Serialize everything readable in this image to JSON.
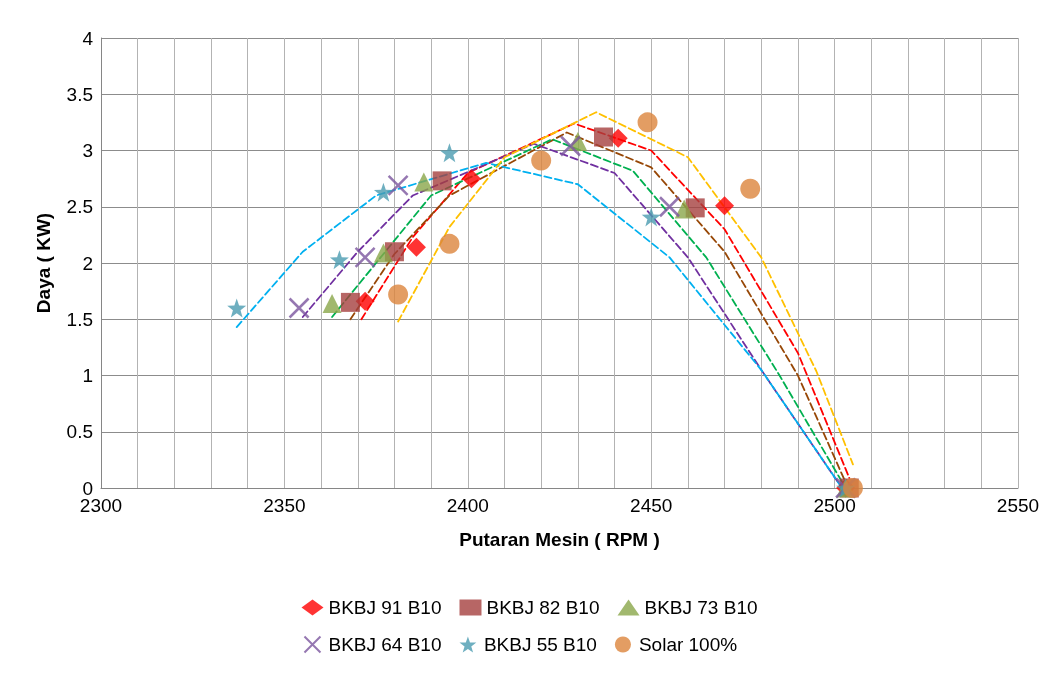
{
  "chart_data": {
    "type": "scatter",
    "xlabel": "Putaran Mesin ( RPM )",
    "ylabel": "Daya ( KW)",
    "xlim": [
      2300,
      2550
    ],
    "xticks": [
      2300,
      {
        "value": 2310,
        "label": null
      },
      {
        "value": 2320,
        "label": null
      },
      {
        "value": 2330,
        "label": null
      },
      {
        "value": 2340,
        "label": null
      },
      2350,
      {
        "value": 2360,
        "label": null
      },
      {
        "value": 2370,
        "label": null
      },
      {
        "value": 2380,
        "label": null
      },
      {
        "value": 2390,
        "label": null
      },
      2400,
      {
        "value": 2410,
        "label": null
      },
      {
        "value": 2420,
        "label": null
      },
      {
        "value": 2430,
        "label": null
      },
      {
        "value": 2440,
        "label": null
      },
      2450,
      {
        "value": 2460,
        "label": null
      },
      {
        "value": 2470,
        "label": null
      },
      {
        "value": 2480,
        "label": null
      },
      {
        "value": 2490,
        "label": null
      },
      2500,
      {
        "value": 2510,
        "label": null
      },
      {
        "value": 2520,
        "label": null
      },
      {
        "value": 2530,
        "label": null
      },
      {
        "value": 2540,
        "label": null
      },
      2550
    ],
    "ylim": [
      0,
      4
    ],
    "yticks": [
      0,
      0.5,
      1,
      1.5,
      2,
      2.5,
      3,
      3.5,
      4
    ],
    "grid": true,
    "legend": "bottom",
    "series": [
      {
        "name": "BKBJ 91 B10",
        "color": "#ff0000",
        "marker": "diamond",
        "x": [
          2372,
          2386,
          2401,
          2441,
          2470,
          2503
        ],
        "values": [
          1.66,
          2.14,
          2.75,
          3.11,
          2.51,
          0
        ]
      },
      {
        "name": "BKBJ 82 B10",
        "color": "#a5403f",
        "marker": "square",
        "x": [
          2368,
          2380,
          2393,
          2437,
          2462,
          2504
        ],
        "values": [
          1.65,
          2.1,
          2.73,
          3.12,
          2.49,
          0
        ]
      },
      {
        "name": "BKBJ 73 B10",
        "color": "#8aa64a",
        "marker": "triangle",
        "x": [
          2363,
          2377,
          2388,
          2430,
          2459,
          2503
        ],
        "values": [
          1.64,
          2.09,
          2.72,
          3.08,
          2.48,
          0
        ]
      },
      {
        "name": "BKBJ 64 B10",
        "color": "#7a559e",
        "marker": "cross",
        "x": [
          2354,
          2372,
          2381,
          2428,
          2455,
          2503
        ],
        "values": [
          1.6,
          2.05,
          2.69,
          3.04,
          2.5,
          0
        ]
      },
      {
        "name": "BKBJ 55 B10",
        "color": "#4a9bb0",
        "marker": "star",
        "x": [
          2337,
          2365,
          2377,
          2395,
          2450,
          2503
        ],
        "values": [
          1.6,
          2.03,
          2.63,
          2.98,
          2.41,
          0
        ]
      },
      {
        "name": "Solar 100%",
        "color": "#dc843c",
        "marker": "circle",
        "x": [
          2381,
          2395,
          2420,
          2449,
          2477,
          2505
        ],
        "values": [
          1.72,
          2.17,
          2.91,
          3.25,
          2.66,
          0
        ]
      },
      {
        "type": "line",
        "color": "#ff0000",
        "marker": "none",
        "line_style": "dashed",
        "x": [
          2371,
          2385,
          2400,
          2429,
          2450,
          2470,
          2490,
          2504
        ],
        "values": [
          1.5,
          2.23,
          2.8,
          3.24,
          3.0,
          2.3,
          1.2,
          0.09
        ]
      },
      {
        "type": "line",
        "color": "#974706",
        "marker": "none",
        "line_style": "dashed",
        "x": [
          2368,
          2380,
          2395,
          2427,
          2450,
          2470,
          2490,
          2503
        ],
        "values": [
          1.5,
          2.08,
          2.6,
          3.16,
          2.85,
          2.1,
          1.0,
          0.05
        ]
      },
      {
        "type": "line",
        "color": "#00b050",
        "marker": "none",
        "line_style": "dashed",
        "x": [
          2363,
          2375,
          2390,
          2423,
          2445,
          2465,
          2485,
          2503
        ],
        "values": [
          1.52,
          2.0,
          2.6,
          3.1,
          2.82,
          2.05,
          1.0,
          0
        ]
      },
      {
        "type": "line",
        "color": "#7030a0",
        "marker": "none",
        "line_style": "dashed",
        "x": [
          2355,
          2370,
          2385,
          2418,
          2440,
          2460,
          2480,
          2502
        ],
        "values": [
          1.52,
          2.1,
          2.6,
          3.06,
          2.8,
          2.05,
          1.05,
          0
        ]
      },
      {
        "type": "line",
        "color": "#00b0f0",
        "marker": "none",
        "line_style": "dashed",
        "x": [
          2337,
          2355,
          2375,
          2405,
          2430,
          2455,
          2480,
          2502
        ],
        "values": [
          1.43,
          2.1,
          2.6,
          2.89,
          2.7,
          2.05,
          1.05,
          0
        ]
      },
      {
        "type": "line",
        "color": "#ffc000",
        "marker": "none",
        "line_style": "dashed",
        "x": [
          2381,
          2395,
          2410,
          2435,
          2460,
          2480,
          2495,
          2505
        ],
        "values": [
          1.48,
          2.32,
          2.94,
          3.34,
          2.94,
          2.05,
          1.04,
          0.21
        ]
      }
    ]
  }
}
